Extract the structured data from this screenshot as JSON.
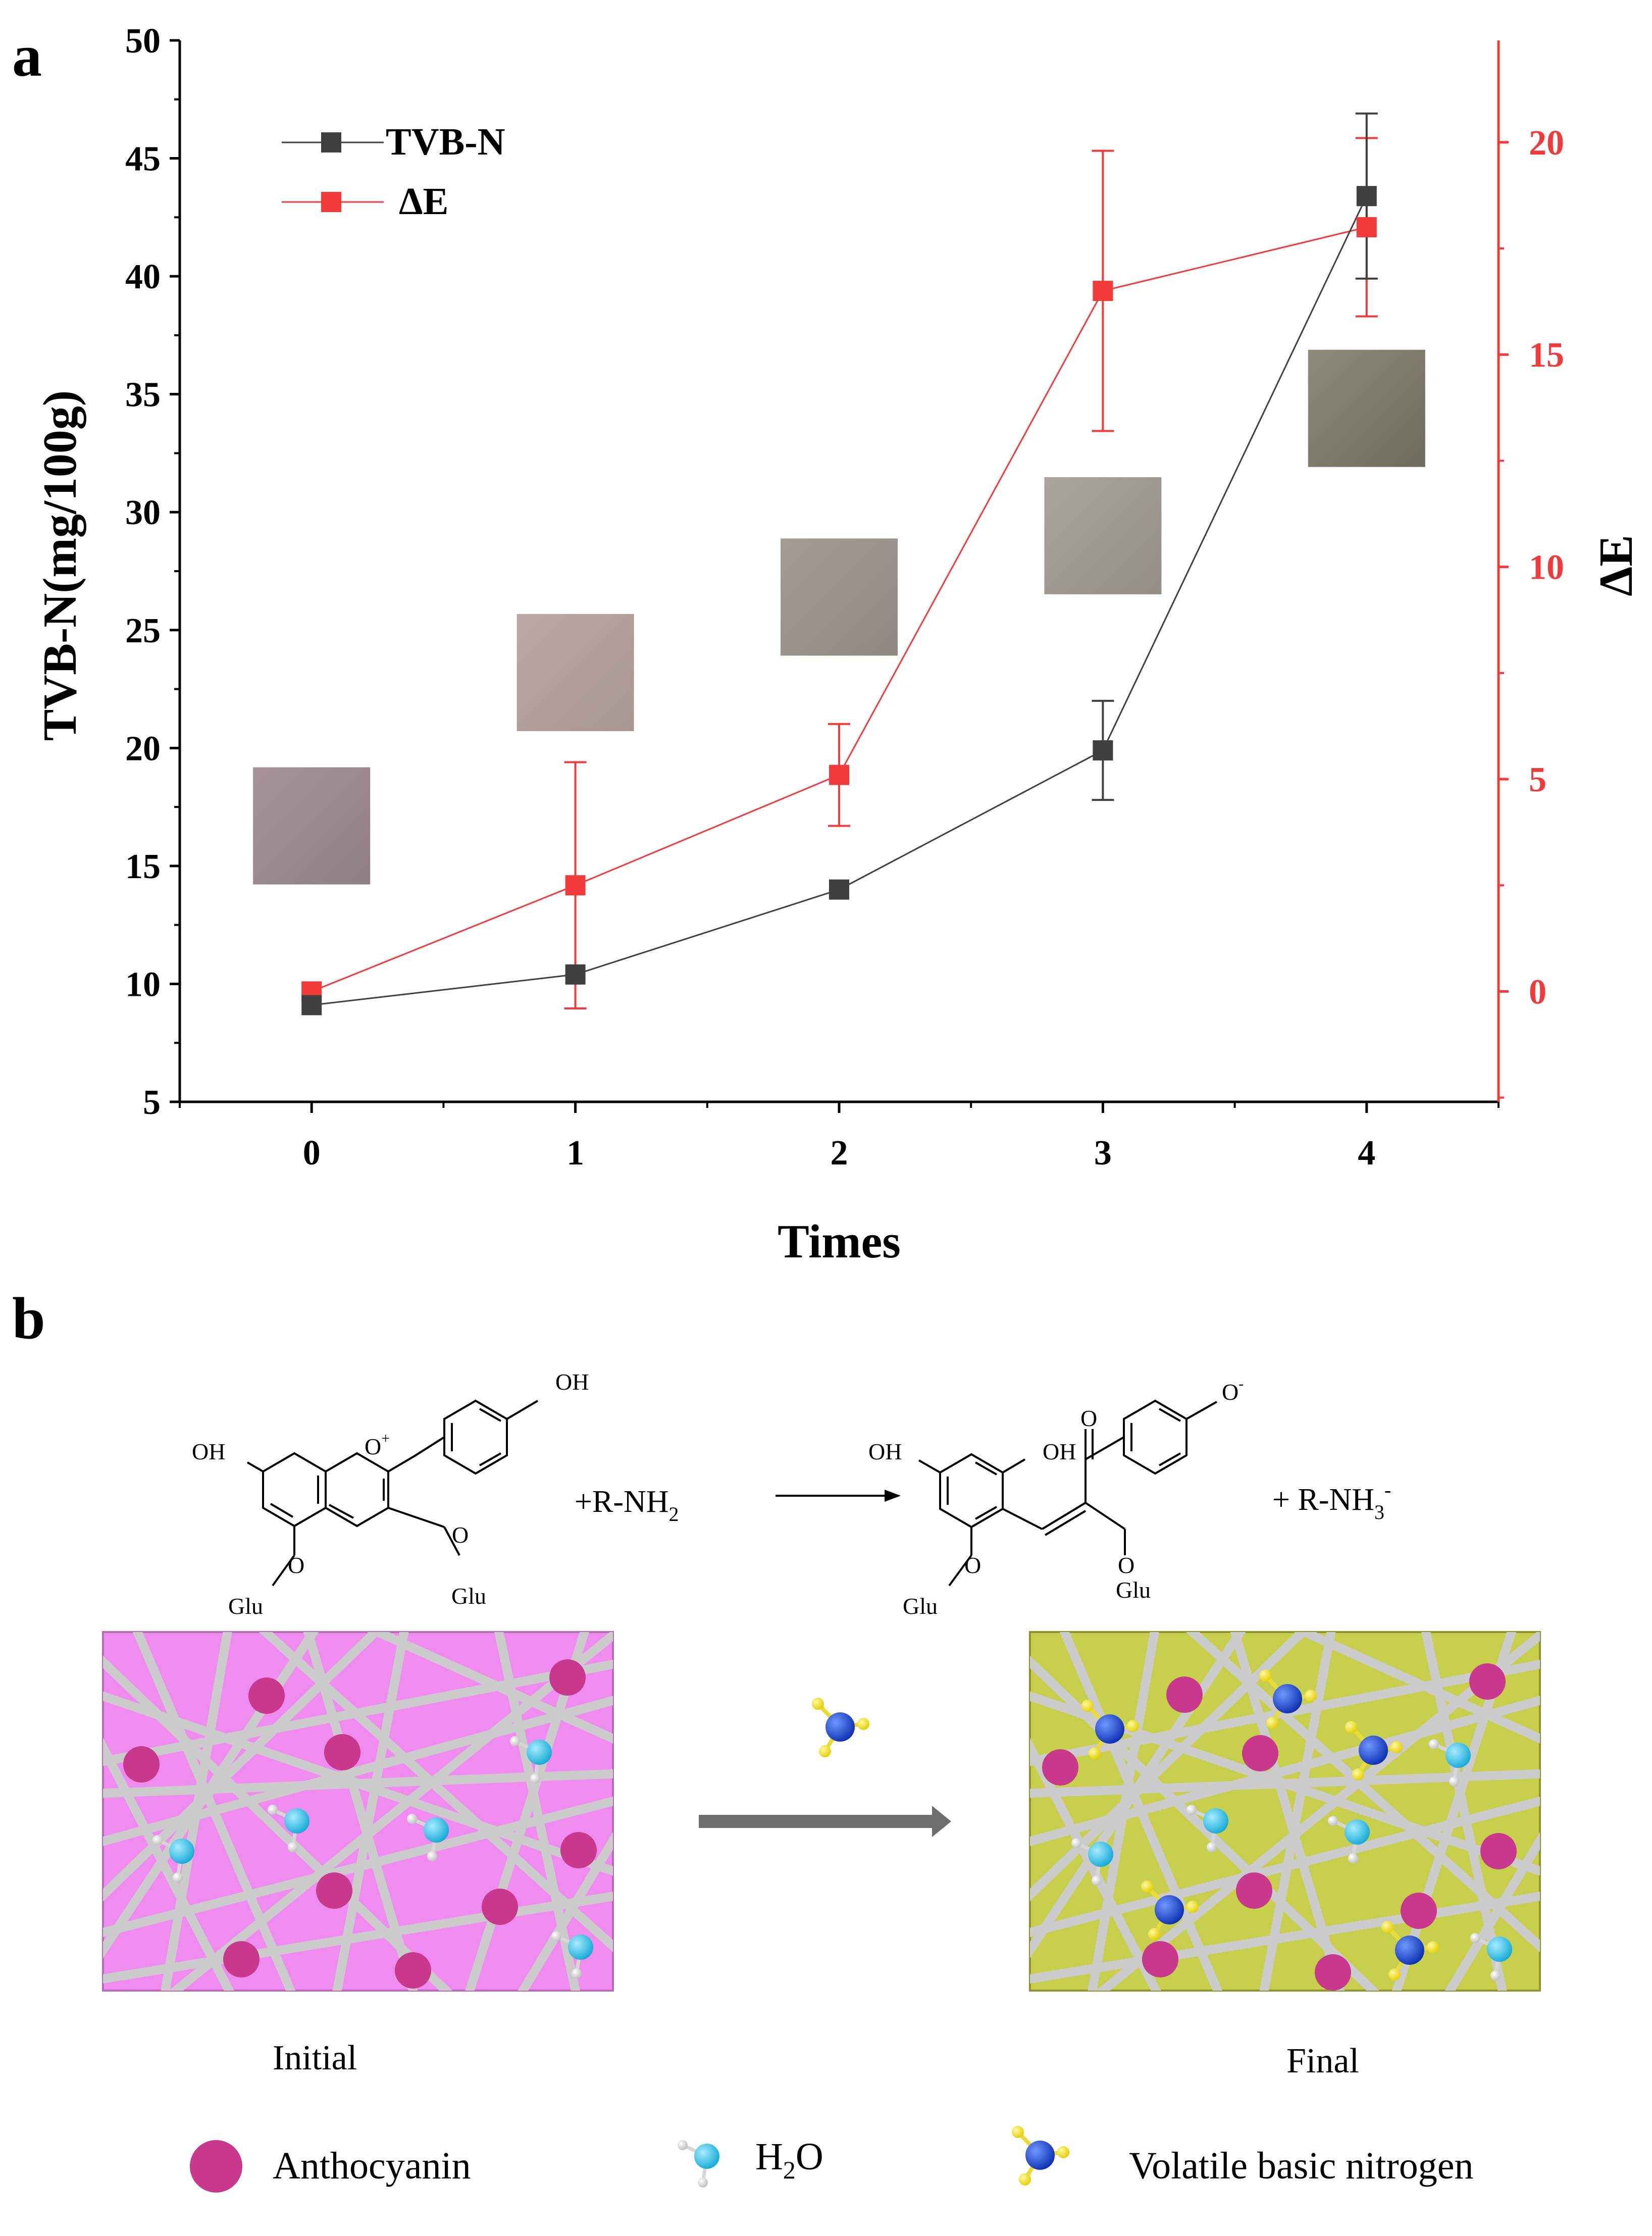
{
  "panel_a": {
    "label": "a"
  },
  "panel_b": {
    "label": "b",
    "reaction": {
      "reactant_oh_top": "OH",
      "reactant_oh_left": "OH",
      "reactant_o_plus": "O",
      "reactant_o_plus_sup": "+",
      "reactant_o1": "O",
      "reactant_o2": "O",
      "reactant_glu1": "Glu",
      "reactant_glu2": "Glu",
      "amine": "+R-NH",
      "amine_sub": "2",
      "product_o_minus": "O",
      "product_o_minus_sup": "-",
      "product_oh1": "OH",
      "product_oh2": "OH",
      "product_keto_o": "O",
      "product_o1": "O",
      "product_o2": "O",
      "product_glu1": "Glu",
      "product_glu2": "Glu",
      "ammonium": "+ R-NH",
      "ammonium_sub": "3",
      "ammonium_sup": "-"
    },
    "initial_label": "Initial",
    "final_label": "Final",
    "legend": {
      "anthocyanin": "Anthocyanin",
      "h2o_h": "H",
      "h2o_sub": "2",
      "h2o_o": "O",
      "nitrogen": "Volatile basic nitrogen"
    },
    "colors": {
      "initial_film": "#f08cf0",
      "final_film": "#c7cf4c",
      "anthocyanin": "#c8388c",
      "water_ball": "#22c4ea",
      "nitrogen_ball": "#1e4fd8",
      "hydrogen_yellow": "#f1e61a",
      "fiber": "#cfcfcf"
    }
  },
  "chart_data": {
    "type": "line",
    "x": [
      0,
      1,
      2,
      3,
      4
    ],
    "xlabel": "Times",
    "xlim": [
      -0.5,
      4.5
    ],
    "xticks": [
      "0",
      "1",
      "2",
      "3",
      "4"
    ],
    "ylabel": "TVB-N(mg/100g)",
    "ylim": [
      5,
      50
    ],
    "yticks": [
      "5",
      "10",
      "15",
      "20",
      "25",
      "30",
      "35",
      "40",
      "45",
      "50"
    ],
    "y2label": "ΔE",
    "y2lim": [
      -2.6,
      22.4
    ],
    "y2ticks": [
      "0",
      "5",
      "10",
      "15",
      "20"
    ],
    "legend_position": "top-left",
    "series": [
      {
        "name": "TVB-N",
        "axis": "left",
        "color": "#404040",
        "values": [
          9.1,
          10.4,
          14.0,
          19.9,
          43.4
        ],
        "error": [
          0,
          0,
          0,
          2.1,
          3.5
        ]
      },
      {
        "name": "ΔE",
        "axis": "right",
        "color": "#f23a3a",
        "values": [
          0.0,
          2.5,
          5.1,
          16.5,
          18.0
        ],
        "error": [
          0,
          2.9,
          1.2,
          3.3,
          2.1
        ]
      }
    ],
    "swatch_colors": [
      "#9a8a8f",
      "#b09f9b",
      "#9a928b",
      "#9e9a94",
      "#7e7d6c"
    ]
  }
}
